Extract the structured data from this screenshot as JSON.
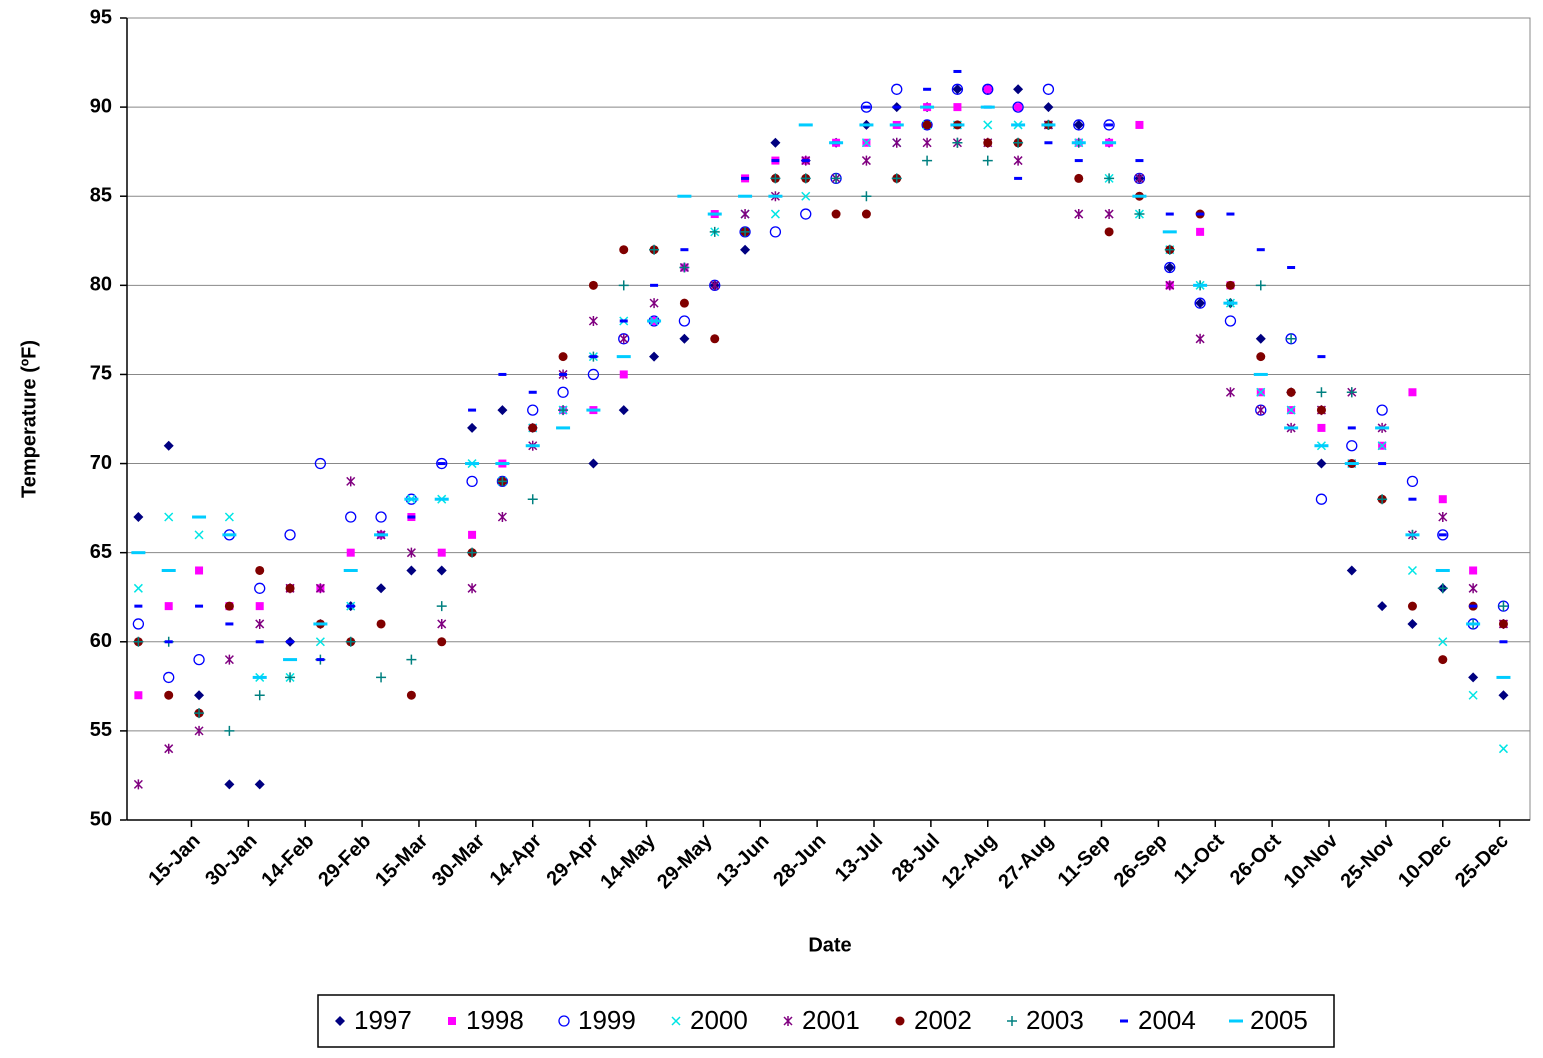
{
  "chart_data": {
    "type": "scatter",
    "y_label": "Temperature (ºF)",
    "x_label": "Date",
    "xlim": [
      -2,
      368
    ],
    "ylim": [
      50,
      95
    ],
    "yticks": [
      50,
      55,
      60,
      65,
      70,
      75,
      80,
      85,
      90,
      95
    ],
    "grid": true,
    "legend": "bottom",
    "xticks": [
      {
        "value": 15,
        "label": "15-Jan"
      },
      {
        "value": 30,
        "label": "30-Jan"
      },
      {
        "value": 45,
        "label": "14-Feb"
      },
      {
        "value": 60,
        "label": "29-Feb"
      },
      {
        "value": 75,
        "label": "15-Mar"
      },
      {
        "value": 90,
        "label": "30-Mar"
      },
      {
        "value": 105,
        "label": "14-Apr"
      },
      {
        "value": 120,
        "label": "29-Apr"
      },
      {
        "value": 135,
        "label": "14-May"
      },
      {
        "value": 150,
        "label": "29-May"
      },
      {
        "value": 165,
        "label": "13-Jun"
      },
      {
        "value": 180,
        "label": "28-Jun"
      },
      {
        "value": 195,
        "label": "13-Jul"
      },
      {
        "value": 210,
        "label": "28-Jul"
      },
      {
        "value": 225,
        "label": "12-Aug"
      },
      {
        "value": 240,
        "label": "27-Aug"
      },
      {
        "value": 255,
        "label": "11-Sep"
      },
      {
        "value": 270,
        "label": "26-Sep"
      },
      {
        "value": 285,
        "label": "11-Oct"
      },
      {
        "value": 300,
        "label": "26-Oct"
      },
      {
        "value": 315,
        "label": "10-Nov"
      },
      {
        "value": 330,
        "label": "25-Nov"
      },
      {
        "value": 345,
        "label": "10-Dec"
      },
      {
        "value": 360,
        "label": "25-Dec"
      }
    ],
    "x": [
      1,
      9,
      17,
      25,
      33,
      41,
      49,
      57,
      65,
      73,
      81,
      89,
      97,
      105,
      113,
      121,
      129,
      137,
      145,
      153,
      161,
      169,
      177,
      185,
      193,
      201,
      209,
      217,
      225,
      233,
      241,
      249,
      257,
      265,
      273,
      281,
      289,
      297,
      305,
      313,
      321,
      329,
      337,
      345,
      353,
      361
    ],
    "series": [
      {
        "name": "1997",
        "color": "#000080",
        "marker": "diamond",
        "values": [
          67,
          71,
          57,
          52,
          52,
          60,
          61,
          62,
          63,
          64,
          64,
          72,
          73,
          72,
          73,
          70,
          73,
          76,
          77,
          80,
          82,
          88,
          87,
          88,
          89,
          90,
          90,
          91,
          91,
          91,
          90,
          89,
          88,
          86,
          81,
          79,
          79,
          77,
          74,
          70,
          64,
          62,
          61,
          63,
          58,
          57
        ]
      },
      {
        "name": "1998",
        "color": "#ff00ff",
        "marker": "square",
        "values": [
          57,
          62,
          64,
          62,
          62,
          63,
          63,
          65,
          66,
          67,
          65,
          66,
          70,
          72,
          73,
          73,
          75,
          78,
          81,
          84,
          86,
          87,
          87,
          88,
          88,
          89,
          90,
          90,
          91,
          90,
          89,
          88,
          88,
          89,
          80,
          83,
          80,
          74,
          73,
          72,
          70,
          71,
          74,
          68,
          64,
          61
        ]
      },
      {
        "name": "1999",
        "color": "#0000ff",
        "marker": "circle-open",
        "values": [
          61,
          58,
          59,
          66,
          63,
          66,
          70,
          67,
          67,
          68,
          70,
          69,
          69,
          73,
          74,
          75,
          77,
          78,
          78,
          80,
          83,
          83,
          84,
          86,
          90,
          91,
          89,
          91,
          91,
          90,
          91,
          89,
          89,
          86,
          81,
          79,
          78,
          73,
          77,
          68,
          71,
          73,
          69,
          66,
          61,
          62
        ]
      },
      {
        "name": "2000",
        "color": "#00e5e5",
        "marker": "x",
        "values": [
          63,
          67,
          66,
          67,
          58,
          58,
          60,
          62,
          66,
          68,
          68,
          70,
          69,
          72,
          73,
          76,
          78,
          78,
          81,
          83,
          84,
          84,
          85,
          86,
          88,
          88,
          89,
          89,
          89,
          89,
          89,
          88,
          86,
          84,
          82,
          80,
          79,
          74,
          73,
          71,
          70,
          71,
          64,
          60,
          57,
          54
        ]
      },
      {
        "name": "2001",
        "color": "#800080",
        "marker": "star",
        "values": [
          52,
          54,
          55,
          59,
          61,
          63,
          63,
          69,
          66,
          65,
          61,
          63,
          67,
          71,
          75,
          78,
          77,
          79,
          81,
          80,
          84,
          85,
          87,
          86,
          87,
          88,
          88,
          88,
          88,
          87,
          89,
          84,
          84,
          86,
          80,
          77,
          74,
          73,
          72,
          73,
          74,
          72,
          66,
          67,
          63,
          61
        ]
      },
      {
        "name": "2002",
        "color": "#800000",
        "marker": "circle",
        "values": [
          60,
          57,
          56,
          62,
          64,
          63,
          61,
          60,
          61,
          57,
          60,
          65,
          69,
          72,
          76,
          80,
          82,
          82,
          79,
          77,
          83,
          86,
          86,
          84,
          84,
          86,
          89,
          89,
          88,
          88,
          89,
          86,
          83,
          85,
          82,
          84,
          80,
          76,
          74,
          73,
          70,
          68,
          62,
          59,
          62,
          61
        ]
      },
      {
        "name": "2003",
        "color": "#008080",
        "marker": "plus",
        "values": [
          60,
          60,
          56,
          55,
          57,
          58,
          59,
          60,
          58,
          59,
          62,
          65,
          69,
          68,
          73,
          76,
          80,
          82,
          81,
          83,
          83,
          86,
          86,
          86,
          85,
          86,
          87,
          88,
          87,
          88,
          89,
          88,
          86,
          84,
          82,
          80,
          79,
          80,
          77,
          74,
          74,
          68,
          66,
          63,
          61,
          62
        ]
      },
      {
        "name": "2004",
        "color": "#0000ff",
        "marker": "dash",
        "values": [
          62,
          60,
          62,
          61,
          60,
          60,
          59,
          62,
          66,
          67,
          70,
          73,
          75,
          74,
          75,
          76,
          78,
          80,
          82,
          84,
          86,
          87,
          87,
          88,
          90,
          90,
          91,
          92,
          90,
          86,
          88,
          87,
          89,
          87,
          84,
          84,
          84,
          82,
          81,
          76,
          72,
          70,
          68,
          66,
          62,
          60
        ]
      },
      {
        "name": "2005",
        "color": "#00ccff",
        "marker": "dash-long",
        "values": [
          65,
          64,
          67,
          66,
          58,
          59,
          61,
          64,
          66,
          68,
          68,
          70,
          70,
          71,
          72,
          73,
          76,
          78,
          85,
          84,
          85,
          85,
          89,
          88,
          89,
          89,
          90,
          89,
          90,
          89,
          89,
          88,
          88,
          85,
          83,
          80,
          79,
          75,
          72,
          71,
          70,
          72,
          66,
          64,
          61,
          58
        ]
      }
    ]
  }
}
